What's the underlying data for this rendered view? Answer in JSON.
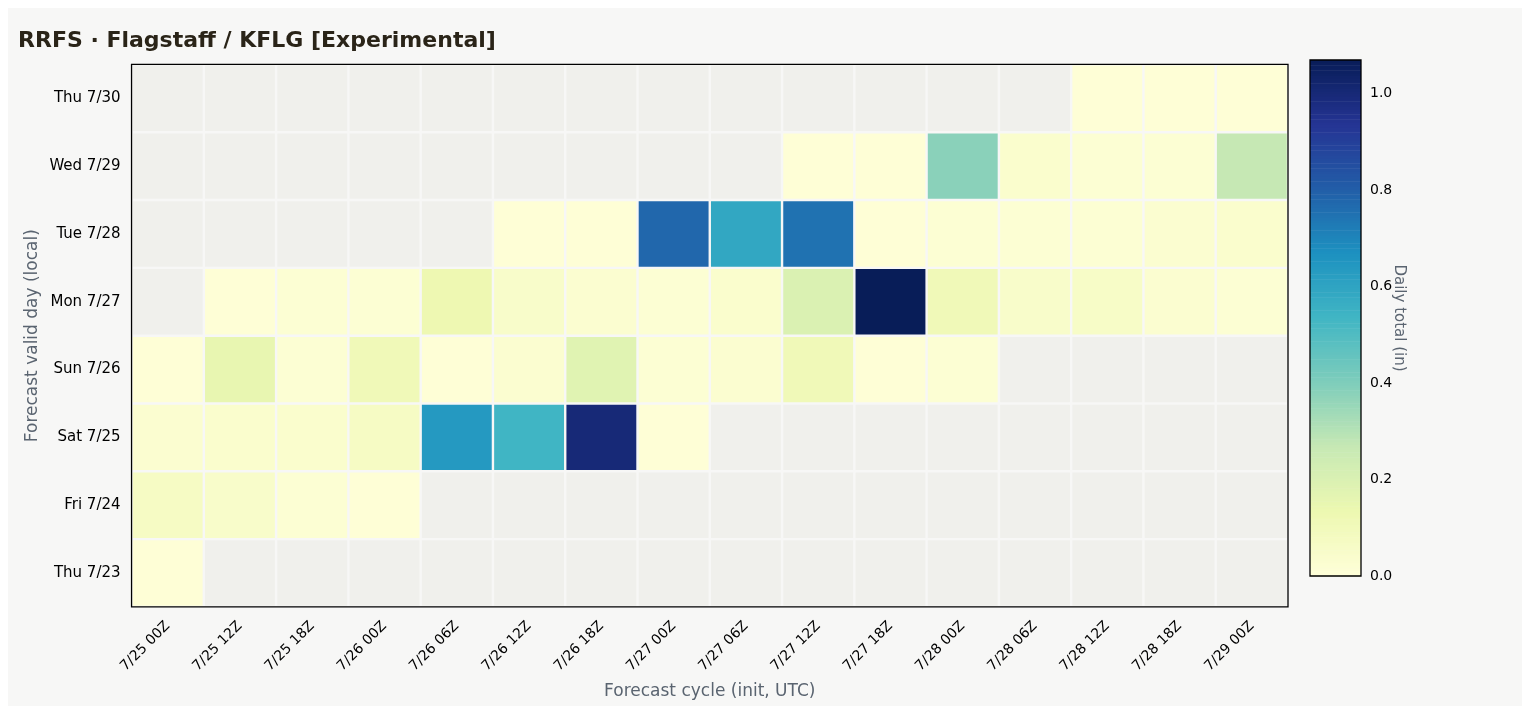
{
  "chart_data": {
    "type": "heatmap",
    "title": "RRFS · Flagstaff / KFLG [Experimental]",
    "xlabel": "Forecast cycle (init, UTC)",
    "ylabel": "Forecast valid day (local)",
    "clabel": "Daily total (in)",
    "categories": [
      "7/25 00Z",
      "7/25 12Z",
      "7/25 18Z",
      "7/26 00Z",
      "7/26 06Z",
      "7/26 12Z",
      "7/26 18Z",
      "7/27 00Z",
      "7/27 06Z",
      "7/27 12Z",
      "7/27 18Z",
      "7/28 00Z",
      "7/28 06Z",
      "7/28 12Z",
      "7/28 18Z",
      "7/29 00Z"
    ],
    "y_categories": [
      "Thu 7/30",
      "Wed 7/29",
      "Tue 7/28",
      "Mon 7/27",
      "Sun 7/26",
      "Sat 7/25",
      "Fri 7/24",
      "Thu 7/23"
    ],
    "cells": [
      [
        null,
        null,
        null,
        null,
        null,
        null,
        null,
        null,
        null,
        null,
        null,
        null,
        null,
        0.01,
        0.01,
        0.01
      ],
      [
        null,
        null,
        null,
        null,
        null,
        null,
        null,
        null,
        null,
        0.01,
        0.01,
        0.38,
        0.04,
        0.02,
        0.02,
        0.27
      ],
      [
        null,
        null,
        null,
        null,
        null,
        0.01,
        0.01,
        0.78,
        0.59,
        0.75,
        0.01,
        0.02,
        0.02,
        0.02,
        0.03,
        0.04
      ],
      [
        null,
        0.01,
        0.02,
        0.02,
        0.13,
        0.05,
        0.03,
        0.02,
        0.04,
        0.2,
        1.07,
        0.11,
        0.05,
        0.06,
        0.03,
        0.02
      ],
      [
        0.01,
        0.15,
        0.02,
        0.11,
        0.01,
        0.03,
        0.18,
        0.02,
        0.03,
        0.11,
        0.01,
        0.02,
        null,
        null,
        null,
        null
      ],
      [
        0.03,
        0.04,
        0.04,
        0.07,
        0.64,
        0.54,
        1.0,
        0.01,
        null,
        null,
        null,
        null,
        null,
        null,
        null,
        null
      ],
      [
        0.07,
        0.05,
        0.02,
        0.01,
        null,
        null,
        null,
        null,
        null,
        null,
        null,
        null,
        null,
        null,
        null,
        null
      ],
      [
        0.01,
        null,
        null,
        null,
        null,
        null,
        null,
        null,
        null,
        null,
        null,
        null,
        null,
        null,
        null,
        null
      ]
    ],
    "clim": [
      0,
      1.07
    ],
    "cticks": [
      {
        "value": 0,
        "label": "0.0"
      },
      0.2,
      0.4,
      0.6,
      0.8,
      {
        "value": 1,
        "label": "1.0"
      }
    ]
  }
}
